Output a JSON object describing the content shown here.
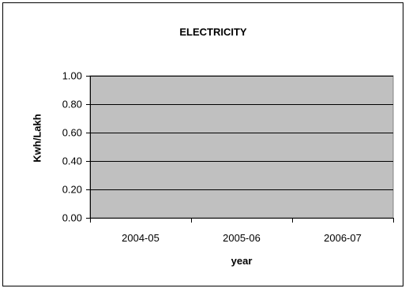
{
  "chart_data": {
    "type": "bar",
    "title": "ELECTRICITY",
    "xlabel": "year",
    "ylabel": "Kwh/Lakh",
    "categories": [
      "2004-05",
      "2005-06",
      "2006-07"
    ],
    "values": [
      0,
      0,
      0
    ],
    "ylim": [
      0,
      1
    ],
    "yticks": [
      "0.00",
      "0.20",
      "0.40",
      "0.60",
      "0.80",
      "1.00"
    ],
    "grid": true,
    "plot_background": "#c0c0c0",
    "legend": "none"
  }
}
